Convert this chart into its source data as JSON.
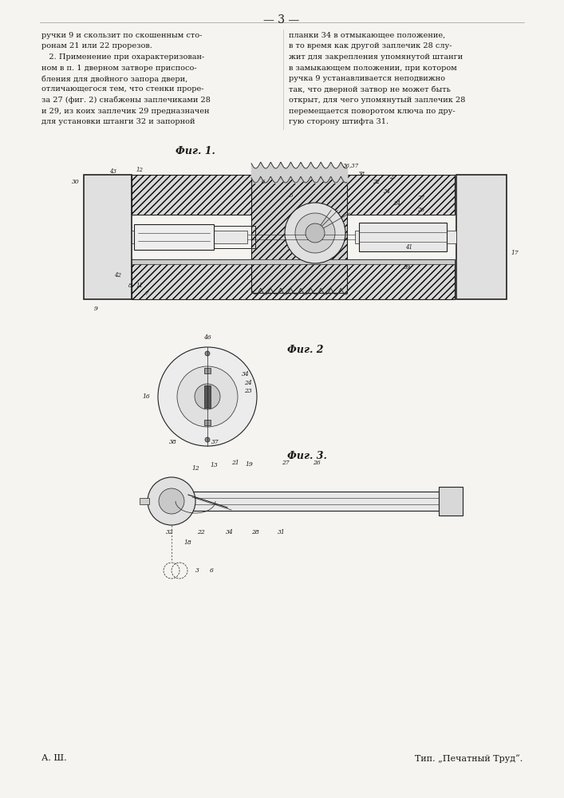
{
  "page_number": "3",
  "background_color": "#f5f4f0",
  "text_color": "#1a1a1a",
  "left_column_text": [
    "ручки 9 и скользит по скошенным сто-",
    "ронам 21 или 22 прорезов.",
    "   2. Применение при охарактеризован-",
    "ном в п. 1 дверном затворе приспосо-",
    "бления для двойного запора двери,",
    "отличающегося тем, что стенки проре-",
    "за 27 (фиг. 2) снабжены заплечиками 28",
    "и 29, из коих заплечик 29 предназначен",
    "для установки штанги 32 и запорной"
  ],
  "right_column_text": [
    "планки 34 в отмыкающее положение,",
    "в то время как другой заплечик 28 слу-",
    "жит для закрепления упомянутой штанги",
    "в замыкающем положении, при котором",
    "ручка 9 устанавливается неподвижно",
    "так, что дверной затвор не может быть",
    "открыт, для чего упомянутый заплечик 28",
    "перемещается поворотом ключа по дру-",
    "гую сторону штифта 31."
  ],
  "fig1_label": "Фиг. 1.",
  "fig2_label": "Фиг. 2",
  "fig3_label": "Фиг. 3.",
  "footer_left": "А. Ш.",
  "footer_right": "Тип. „Печатный Труд“."
}
